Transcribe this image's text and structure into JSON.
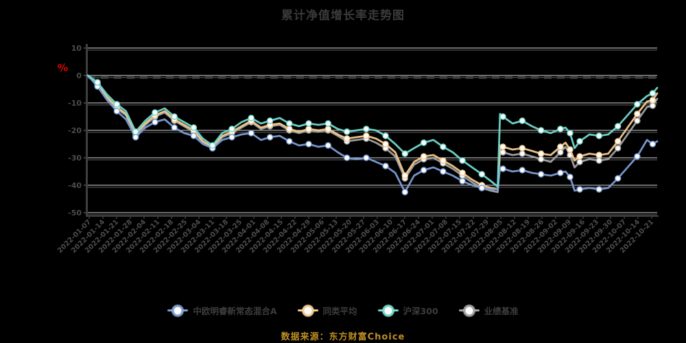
{
  "title": "累计净值增长率走势图",
  "y_axis_unit_mark": "%",
  "source_note": "数据来源：东方财富Choice",
  "colors": {
    "background": "#000000",
    "title_text": "#3a3a3a",
    "axis_line": "#3f3f3f",
    "tick_label": "#4c4c4c",
    "gridline": "#f0f0f0",
    "zero_dash_line": "#3c3c3c",
    "red_mark": "#e60000",
    "source_text": "#bd8e22"
  },
  "chart_data": {
    "type": "line",
    "title": "累计净值增长率走势图",
    "xlabel": "",
    "ylabel": "%",
    "ylim": [
      -50,
      10
    ],
    "y_ticks": [
      10,
      0,
      -10,
      -20,
      -30,
      -40,
      -50
    ],
    "grid": true,
    "legend_position": "bottom",
    "marker_style": "white-dot",
    "x_tick_labels": [
      "2022-01-07",
      "2022-01-14",
      "2022-01-21",
      "2022-01-28",
      "2022-02-04",
      "2022-02-11",
      "2022-02-18",
      "2022-02-25",
      "2022-03-04",
      "2022-03-11",
      "2022-03-18",
      "2022-03-25",
      "2022-04-01",
      "2022-04-08",
      "2022-04-15",
      "2022-04-22",
      "2022-04-29",
      "2022-05-06",
      "2022-05-13",
      "2022-05-20",
      "2022-05-27",
      "2022-06-03",
      "2022-06-10",
      "2022-06-17",
      "2022-06-24",
      "2022-07-01",
      "2022-07-08",
      "2022-07-15",
      "2022-07-22",
      "2022-07-29",
      "2022-08-05",
      "2022-08-12",
      "2022-08-19",
      "2022-08-26",
      "2022-09-02",
      "2022-09-09",
      "2022-09-16",
      "2022-09-23",
      "2022-09-30",
      "2022-10-07",
      "2022-10-14",
      "2022-10-21"
    ],
    "x_frac": [
      0,
      1.7,
      3.4,
      5.1,
      6.7,
      8.4,
      10.1,
      11.8,
      13.5,
      15.2,
      16.9,
      18.6,
      20.2,
      21.9,
      23.6,
      25.3,
      27,
      28.7,
      30.4,
      32,
      33.7,
      35.4,
      37.1,
      38.8,
      40.5,
      42.2,
      43.9,
      45.5,
      47.2,
      48.9,
      50.6,
      52.3,
      54,
      55.7,
      57.3,
      59,
      60.7,
      62.4,
      64.1,
      65.8,
      67.5,
      69.2,
      70.8,
      72,
      72.4,
      72.9,
      74.6,
      76.3,
      78,
      79.6,
      81.3,
      83,
      83.9,
      84.7,
      85.5,
      86.4,
      88.1,
      89.8,
      91.4,
      93.1,
      94.8,
      96.5,
      98.2,
      99.2,
      100
    ],
    "series": [
      {
        "name": "中欧明睿新常态混合A",
        "color": "#7b9cd6",
        "values": [
          0,
          -4,
          -9,
          -13,
          -16,
          -22.5,
          -19,
          -17,
          -16,
          -19,
          -21,
          -22,
          -25,
          -26.5,
          -23.5,
          -22.5,
          -21.5,
          -21,
          -23.5,
          -22.5,
          -22,
          -24,
          -25.5,
          -25,
          -26,
          -25.5,
          -28,
          -30,
          -30.5,
          -30,
          -31.5,
          -33,
          -35.5,
          -42.5,
          -36.5,
          -34.5,
          -33.5,
          -35,
          -36.5,
          -38.5,
          -40,
          -41,
          -41.5,
          -41.5,
          -33.5,
          -34,
          -35,
          -34.5,
          -35.5,
          -36,
          -36.5,
          -35.5,
          -35,
          -37,
          -42,
          -41.5,
          -41,
          -41.5,
          -41,
          -37.5,
          -33.5,
          -29.5,
          -23.5,
          -25,
          -24
        ]
      },
      {
        "name": "同类平均",
        "color": "#f6c98c",
        "values": [
          0,
          -3,
          -8,
          -11.5,
          -14,
          -21,
          -17.5,
          -14.5,
          -13,
          -16,
          -18,
          -20,
          -24,
          -26,
          -22,
          -20.5,
          -18.5,
          -16.5,
          -19,
          -18,
          -17.5,
          -19.5,
          -20.5,
          -19.5,
          -20,
          -19.5,
          -21.5,
          -23,
          -22.5,
          -22,
          -23,
          -25,
          -28,
          -36.5,
          -31.5,
          -29.5,
          -29,
          -31,
          -33,
          -35.5,
          -38,
          -40,
          -41,
          -41.5,
          -25.5,
          -26,
          -27,
          -26.5,
          -27.5,
          -28.5,
          -29,
          -26,
          -24.5,
          -27,
          -31,
          -29.5,
          -28.5,
          -29,
          -28.5,
          -24,
          -19,
          -14,
          -9.5,
          -9,
          -6.5
        ]
      },
      {
        "name": "沪深300",
        "color": "#6fd8cb",
        "values": [
          0,
          -2.5,
          -7,
          -10.5,
          -13,
          -20.5,
          -16.5,
          -13.5,
          -12,
          -15,
          -17,
          -19,
          -23,
          -25.5,
          -21,
          -19.5,
          -17,
          -15.5,
          -17.5,
          -16.5,
          -15.5,
          -17.5,
          -18.5,
          -17.5,
          -18,
          -17.5,
          -19.5,
          -20.5,
          -20,
          -19.5,
          -20,
          -22,
          -25,
          -28.5,
          -26.5,
          -24.5,
          -23.5,
          -26,
          -28,
          -31,
          -33.5,
          -36,
          -38.5,
          -40.5,
          -14,
          -15,
          -17.5,
          -16.5,
          -18.5,
          -20,
          -21,
          -19.5,
          -19,
          -21,
          -26.5,
          -24,
          -21.5,
          -22,
          -21.5,
          -18.5,
          -14.5,
          -10.5,
          -7.5,
          -6.5,
          -4.5
        ]
      },
      {
        "name": "业绩基准",
        "color": "#a3a3a3",
        "values": [
          0,
          -3.5,
          -8.5,
          -12,
          -14.5,
          -22,
          -18,
          -15,
          -13.5,
          -16.5,
          -18.5,
          -20.5,
          -24.5,
          -26.5,
          -22.5,
          -21,
          -19,
          -17,
          -19.5,
          -18.5,
          -18,
          -20,
          -21,
          -20,
          -20.5,
          -20,
          -22,
          -24,
          -23.5,
          -23,
          -24.5,
          -26.5,
          -29.5,
          -37.5,
          -32.5,
          -30.5,
          -30,
          -32,
          -34,
          -36.5,
          -39,
          -41,
          -42,
          -42.5,
          -27.5,
          -28,
          -29,
          -28.5,
          -29.5,
          -30.5,
          -31.5,
          -28,
          -26,
          -29,
          -33.5,
          -31.5,
          -30.5,
          -31,
          -30.5,
          -26.5,
          -21.5,
          -16.5,
          -11.5,
          -11,
          -8.5
        ]
      }
    ]
  }
}
